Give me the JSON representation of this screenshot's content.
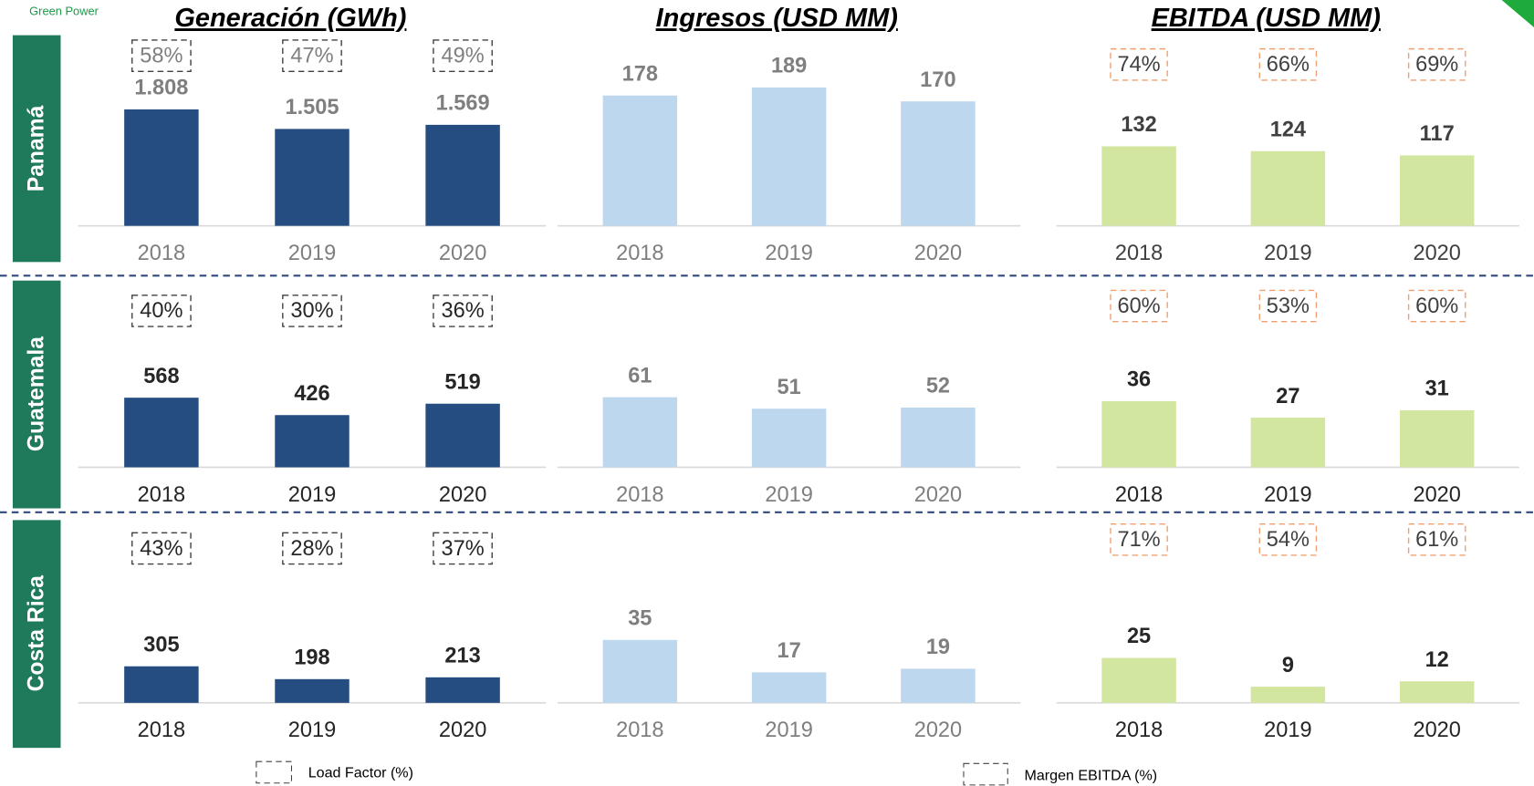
{
  "header": {
    "brand": "Green Power"
  },
  "columns": [
    "Generación (GWh)",
    "Ingresos (USD MM)",
    "EBITDA (USD MM)"
  ],
  "rows": [
    "Panamá",
    "Guatemala",
    "Costa Rica"
  ],
  "legend": [
    "Load Factor (%)",
    "Margen EBITDA (%)"
  ],
  "chart_data": [
    {
      "type": "bar",
      "categories": [
        "2018",
        "2019",
        "2020"
      ],
      "values": [
        1808,
        1505,
        1569
      ],
      "value_labels": [
        "1.808",
        "1.505",
        "1.569"
      ],
      "color": "#264d82",
      "text_color": "#7f7f7f",
      "ylim": [
        0,
        2900
      ],
      "box_values": [
        58,
        47,
        49
      ],
      "box_value_labels": [
        "58%",
        "47%",
        "49%"
      ],
      "box_color": "#404040",
      "box_text_color": "#7f7f7f"
    },
    {
      "type": "bar",
      "categories": [
        "2018",
        "2019",
        "2020"
      ],
      "values": [
        178,
        189,
        170
      ],
      "color": "#bdd7ee",
      "text_color": "#7f7f7f",
      "ylim": [
        0,
        255
      ]
    },
    {
      "type": "bar",
      "categories": [
        "2018",
        "2019",
        "2020"
      ],
      "values": [
        132,
        124,
        117
      ],
      "color": "#d2e6a0",
      "text_color": "#404040",
      "ylim": [
        0,
        310
      ],
      "box_values": [
        74,
        66,
        69
      ],
      "box_value_labels": [
        "74%",
        "66%",
        "69%"
      ],
      "box_color": "#f0a070",
      "box_text_color": "#404040"
    },
    {
      "type": "bar",
      "categories": [
        "2018",
        "2019",
        "2020"
      ],
      "values": [
        568,
        426,
        519
      ],
      "color": "#264d82",
      "text_color": "#262626",
      "ylim": [
        0,
        1500
      ],
      "box_values": [
        40,
        30,
        36
      ],
      "box_value_labels": [
        "40%",
        "30%",
        "36%"
      ],
      "box_color": "#404040",
      "box_text_color": "#262626"
    },
    {
      "type": "bar",
      "categories": [
        "2018",
        "2019",
        "2020"
      ],
      "values": [
        61,
        51,
        52
      ],
      "color": "#bdd7ee",
      "text_color": "#7f7f7f",
      "ylim": [
        0,
        160
      ]
    },
    {
      "type": "bar",
      "categories": [
        "2018",
        "2019",
        "2020"
      ],
      "values": [
        36,
        27,
        31
      ],
      "color": "#d2e6a0",
      "text_color": "#262626",
      "ylim": [
        0,
        100
      ],
      "box_values": [
        60,
        53,
        60
      ],
      "box_value_labels": [
        "60%",
        "53%",
        "60%"
      ],
      "box_color": "#f0a070",
      "box_text_color": "#404040"
    },
    {
      "type": "bar",
      "categories": [
        "2018",
        "2019",
        "2020"
      ],
      "values": [
        305,
        198,
        213
      ],
      "color": "#264d82",
      "text_color": "#262626",
      "ylim": [
        0,
        1500
      ],
      "box_values": [
        43,
        28,
        37
      ],
      "box_value_labels": [
        "43%",
        "28%",
        "37%"
      ],
      "box_color": "#404040",
      "box_text_color": "#262626"
    },
    {
      "type": "bar",
      "categories": [
        "2018",
        "2019",
        "2020"
      ],
      "values": [
        35,
        17,
        19
      ],
      "color": "#bdd7ee",
      "text_color": "#7f7f7f",
      "ylim": [
        0,
        100
      ]
    },
    {
      "type": "bar",
      "categories": [
        "2018",
        "2019",
        "2020"
      ],
      "values": [
        25,
        9,
        12
      ],
      "color": "#d2e6a0",
      "text_color": "#262626",
      "ylim": [
        0,
        100
      ],
      "box_values": [
        71,
        54,
        61
      ],
      "box_value_labels": [
        "71%",
        "54%",
        "61%"
      ],
      "box_color": "#f0a070",
      "box_text_color": "#404040"
    }
  ]
}
